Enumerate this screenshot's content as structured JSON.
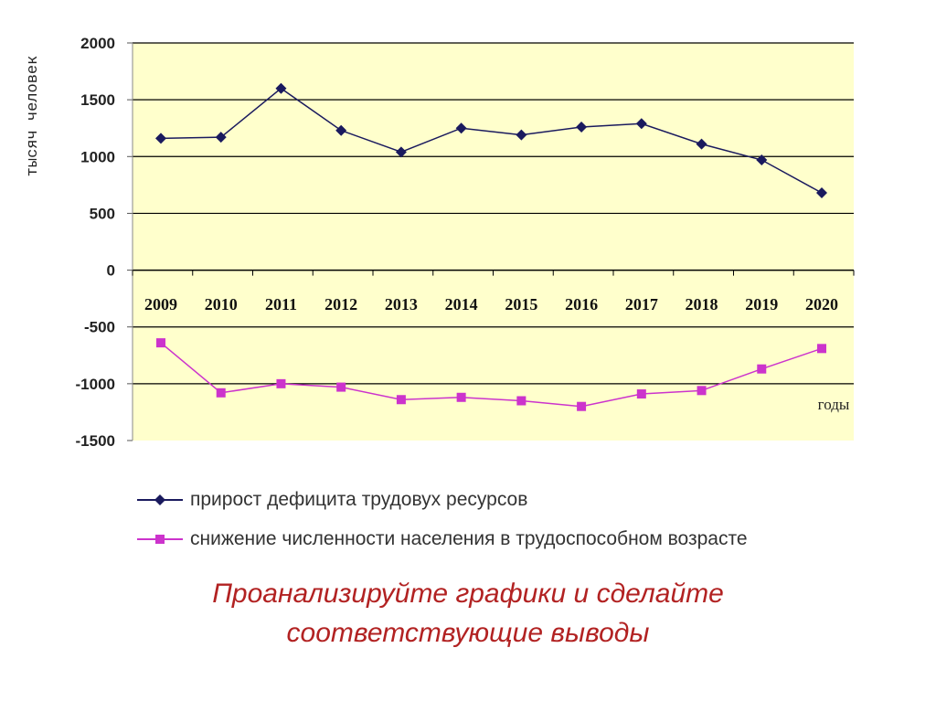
{
  "chart_data": {
    "type": "line",
    "ylabel": "тысяч человек",
    "xlabel": "годы",
    "x": [
      "2009",
      "2010",
      "2011",
      "2012",
      "2013",
      "2014",
      "2015",
      "2016",
      "2017",
      "2018",
      "2019",
      "2020"
    ],
    "yticks": [
      "2000",
      "1500",
      "1000",
      "500",
      "0",
      "-500",
      "-1000",
      "-1500"
    ],
    "ylim": [
      -1500,
      2000
    ],
    "grid": true,
    "legend_position": "bottom",
    "series": [
      {
        "name": "прирост дефицита трудовух ресурсов",
        "color": "#1a1a5e",
        "marker": "diamond",
        "values": [
          1160,
          1170,
          1600,
          1230,
          1040,
          1250,
          1190,
          1260,
          1290,
          1110,
          970,
          680
        ]
      },
      {
        "name": "снижение численности населения в трудоспособном возрасте",
        "color": "#cc33cc",
        "marker": "square",
        "values": [
          -640,
          -1080,
          -1000,
          -1030,
          -1140,
          -1120,
          -1150,
          -1200,
          -1090,
          -1060,
          -870,
          -690
        ]
      }
    ],
    "colors": {
      "plot_background": "#ffffcc",
      "grid": "#000000"
    }
  },
  "caption": {
    "line1": "Проанализируйте  графики и сделайте",
    "line2": "соответствующие выводы"
  }
}
